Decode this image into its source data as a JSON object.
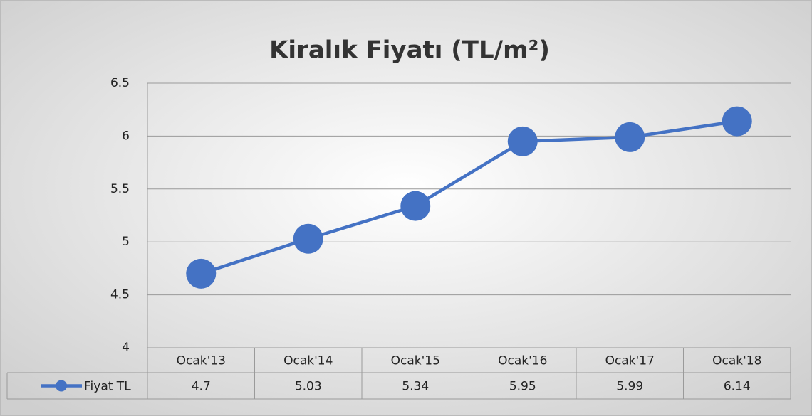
{
  "chart_data": {
    "type": "line",
    "title": "Kiralık Fiyatı (TL/m²)",
    "categories": [
      "Ocak'13",
      "Ocak'14",
      "Ocak'15",
      "Ocak'16",
      "Ocak'17",
      "Ocak'18"
    ],
    "series": [
      {
        "name": "Fiyat TL",
        "color": "#4472c4",
        "values": [
          4.7,
          5.03,
          5.34,
          5.95,
          5.99,
          6.14
        ]
      }
    ],
    "ylim": [
      4,
      6.5
    ],
    "yticks": [
      4,
      4.5,
      5,
      5.5,
      6,
      6.5
    ],
    "grid": true,
    "data_table": true
  }
}
